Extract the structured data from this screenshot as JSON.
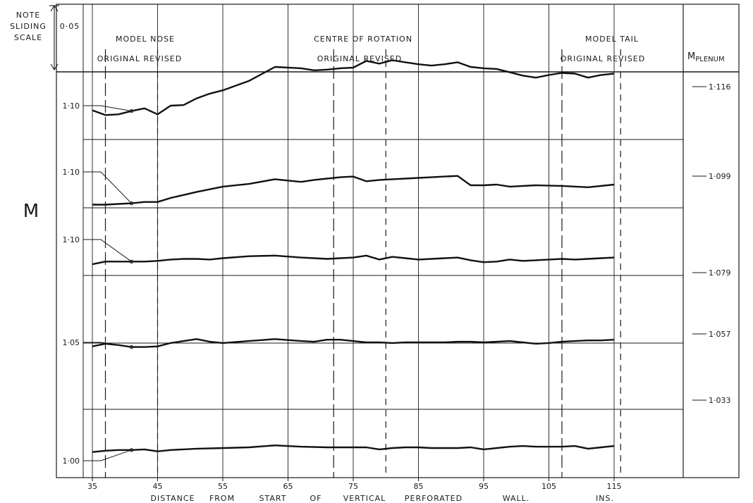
{
  "header": {
    "note": [
      "NOTE",
      "SLIDING",
      "SCALE"
    ],
    "scale_value": "0·05",
    "nose_title": "MODEL  NOSE",
    "nose_sub": "ORIGINAL  REVISED",
    "centre_title": "CENTRE   OF   ROTATION",
    "centre_sub": "ORIGINAL   REVISED",
    "tail_title": "MODEL  TAIL",
    "tail_sub": "ORIGINAL   REVISED",
    "plenum_label": "M",
    "plenum_sub": "PLENUM"
  },
  "y_label": "M",
  "x_axis": {
    "label_parts": [
      "DISTANCE",
      "FROM",
      "START",
      "OF",
      "VERTICAL",
      "PERFORATED",
      "WALL.",
      "INS."
    ]
  },
  "chart_data": {
    "type": "line",
    "title": "",
    "xlabel": "DISTANCE FROM START OF VERTICAL PERFORATED WALL. INS.",
    "ylabel": "M",
    "x_ticks": [
      "35",
      "45",
      "55",
      "65",
      "75",
      "85",
      "95",
      "105",
      "115"
    ],
    "x_tick_values": [
      35,
      45,
      55,
      65,
      75,
      85,
      95,
      105,
      115
    ],
    "xlim": [
      35,
      115
    ],
    "grid": true,
    "y_scale_note": "sliding scale, 0.05 per division",
    "reference_positions": {
      "model_nose": {
        "original": 37,
        "revised": 45
      },
      "centre_of_rotation": {
        "original": 72,
        "revised": 80
      },
      "model_tail": {
        "original": 107,
        "revised": 116
      }
    },
    "series": [
      {
        "plenum_label": "1·116",
        "panel_tick": "1·10",
        "x": [
          35,
          37,
          39,
          41,
          43,
          45,
          47,
          49,
          51,
          53,
          55,
          59,
          63,
          67,
          69,
          71,
          73,
          75,
          77,
          79,
          81,
          83,
          85,
          87,
          89,
          91,
          93,
          95,
          97,
          99,
          101,
          103,
          105,
          107,
          109,
          111,
          113,
          115
        ],
        "values": [
          1.093,
          1.086,
          1.087,
          1.092,
          1.096,
          1.087,
          1.1,
          1.101,
          1.111,
          1.118,
          1.123,
          1.137,
          1.158,
          1.156,
          1.153,
          1.154,
          1.156,
          1.157,
          1.167,
          1.163,
          1.168,
          1.165,
          1.162,
          1.16,
          1.162,
          1.165,
          1.158,
          1.156,
          1.155,
          1.15,
          1.145,
          1.142,
          1.146,
          1.149,
          1.148,
          1.142,
          1.146,
          1.148
        ]
      },
      {
        "plenum_label": "1·099",
        "panel_tick": "1·10",
        "x": [
          35,
          37,
          39,
          41,
          43,
          45,
          47,
          51,
          55,
          59,
          63,
          67,
          69,
          71,
          73,
          75,
          77,
          79,
          81,
          83,
          85,
          87,
          89,
          91,
          93,
          95,
          97,
          99,
          103,
          107,
          111,
          115
        ],
        "values": [
          1.051,
          1.051,
          1.052,
          1.053,
          1.055,
          1.055,
          1.061,
          1.07,
          1.078,
          1.082,
          1.089,
          1.085,
          1.088,
          1.09,
          1.092,
          1.093,
          1.086,
          1.088,
          1.089,
          1.09,
          1.091,
          1.092,
          1.093,
          1.094,
          1.08,
          1.08,
          1.081,
          1.078,
          1.08,
          1.079,
          1.077,
          1.081
        ]
      },
      {
        "plenum_label": "1·079",
        "panel_tick": "1·10",
        "x": [
          35,
          37,
          39,
          41,
          43,
          45,
          47,
          49,
          51,
          53,
          55,
          59,
          63,
          67,
          69,
          71,
          73,
          75,
          77,
          79,
          81,
          83,
          85,
          87,
          89,
          91,
          93,
          95,
          97,
          99,
          101,
          103,
          105,
          107,
          109,
          111,
          113,
          115
        ],
        "values": [
          1.063,
          1.067,
          1.067,
          1.067,
          1.067,
          1.068,
          1.07,
          1.071,
          1.071,
          1.07,
          1.072,
          1.075,
          1.076,
          1.073,
          1.072,
          1.071,
          1.072,
          1.073,
          1.076,
          1.07,
          1.074,
          1.072,
          1.07,
          1.071,
          1.072,
          1.073,
          1.069,
          1.066,
          1.067,
          1.07,
          1.068,
          1.069,
          1.07,
          1.071,
          1.07,
          1.071,
          1.072,
          1.073
        ]
      },
      {
        "plenum_label": "1·057",
        "panel_tick": "1·05",
        "x": [
          35,
          37,
          39,
          41,
          43,
          45,
          47,
          49,
          51,
          53,
          55,
          59,
          63,
          67,
          69,
          71,
          73,
          75,
          77,
          79,
          81,
          83,
          85,
          87,
          89,
          91,
          93,
          95,
          97,
          99,
          101,
          103,
          105,
          107,
          109,
          111,
          113,
          115
        ],
        "values": [
          1.044,
          1.048,
          1.046,
          1.043,
          1.043,
          1.044,
          1.049,
          1.052,
          1.055,
          1.051,
          1.049,
          1.052,
          1.055,
          1.052,
          1.051,
          1.054,
          1.054,
          1.052,
          1.05,
          1.05,
          1.049,
          1.05,
          1.05,
          1.05,
          1.05,
          1.051,
          1.051,
          1.05,
          1.051,
          1.052,
          1.05,
          1.048,
          1.049,
          1.051,
          1.052,
          1.053,
          1.053,
          1.054
        ]
      },
      {
        "plenum_label": "1·033",
        "panel_tick": "1·00",
        "x": [
          35,
          37,
          39,
          41,
          43,
          45,
          47,
          51,
          55,
          59,
          63,
          67,
          71,
          75,
          77,
          79,
          81,
          83,
          85,
          87,
          89,
          91,
          93,
          95,
          97,
          99,
          101,
          103,
          105,
          107,
          109,
          111,
          113,
          115
        ],
        "values": [
          1.013,
          1.015,
          1.016,
          1.016,
          1.017,
          1.014,
          1.016,
          1.018,
          1.019,
          1.02,
          1.023,
          1.021,
          1.02,
          1.02,
          1.02,
          1.017,
          1.019,
          1.02,
          1.02,
          1.019,
          1.019,
          1.019,
          1.02,
          1.017,
          1.019,
          1.021,
          1.022,
          1.021,
          1.021,
          1.021,
          1.022,
          1.018,
          1.02,
          1.022
        ]
      }
    ]
  }
}
